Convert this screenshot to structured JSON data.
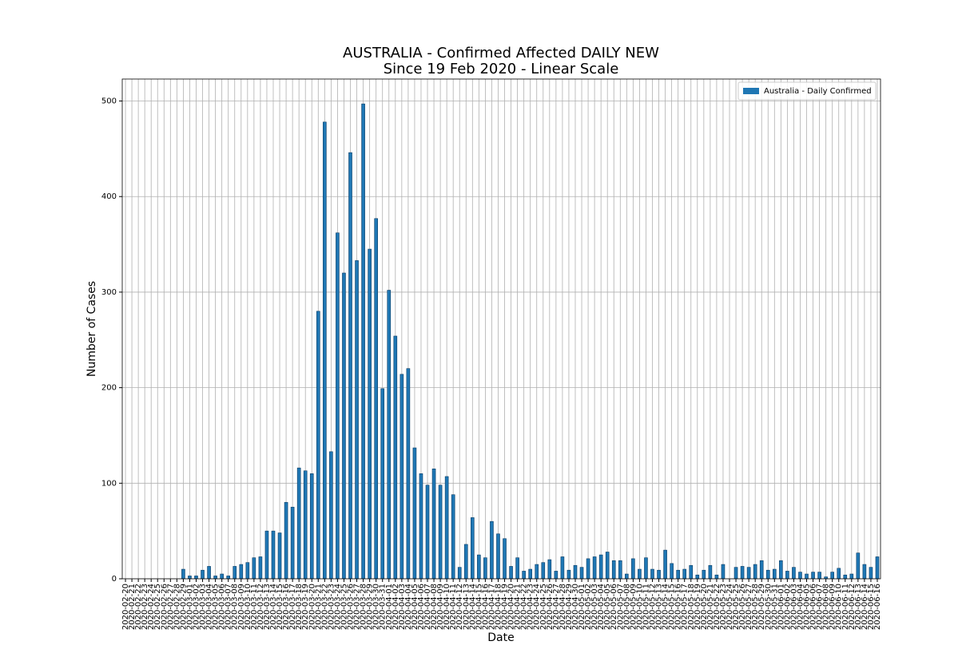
{
  "chart_data": {
    "type": "bar",
    "title": "AUSTRALIA - Confirmed Affected DAILY NEW",
    "subtitle": "Since 19 Feb 2020 - Linear Scale",
    "x_label": "Date",
    "y_label": "Number of Cases",
    "legend_position": "upper right",
    "grid": true,
    "categories": [
      "2020-02-20",
      "2020-02-21",
      "2020-02-22",
      "2020-02-23",
      "2020-02-24",
      "2020-02-25",
      "2020-02-26",
      "2020-02-27",
      "2020-02-28",
      "2020-02-29",
      "2020-03-01",
      "2020-03-02",
      "2020-03-03",
      "2020-03-04",
      "2020-03-05",
      "2020-03-06",
      "2020-03-07",
      "2020-03-08",
      "2020-03-09",
      "2020-03-10",
      "2020-03-11",
      "2020-03-12",
      "2020-03-13",
      "2020-03-14",
      "2020-03-15",
      "2020-03-16",
      "2020-03-17",
      "2020-03-18",
      "2020-03-19",
      "2020-03-20",
      "2020-03-21",
      "2020-03-22",
      "2020-03-23",
      "2020-03-24",
      "2020-03-25",
      "2020-03-26",
      "2020-03-27",
      "2020-03-28",
      "2020-03-29",
      "2020-03-30",
      "2020-03-31",
      "2020-04-01",
      "2020-04-02",
      "2020-04-03",
      "2020-04-04",
      "2020-04-05",
      "2020-04-06",
      "2020-04-07",
      "2020-04-08",
      "2020-04-09",
      "2020-04-10",
      "2020-04-11",
      "2020-04-12",
      "2020-04-13",
      "2020-04-14",
      "2020-04-15",
      "2020-04-16",
      "2020-04-17",
      "2020-04-18",
      "2020-04-19",
      "2020-04-20",
      "2020-04-21",
      "2020-04-22",
      "2020-04-23",
      "2020-04-24",
      "2020-04-25",
      "2020-04-26",
      "2020-04-27",
      "2020-04-28",
      "2020-04-29",
      "2020-04-30",
      "2020-05-01",
      "2020-05-02",
      "2020-05-03",
      "2020-05-04",
      "2020-05-05",
      "2020-05-06",
      "2020-05-07",
      "2020-05-08",
      "2020-05-09",
      "2020-05-10",
      "2020-05-11",
      "2020-05-12",
      "2020-05-13",
      "2020-05-14",
      "2020-05-15",
      "2020-05-16",
      "2020-05-17",
      "2020-05-18",
      "2020-05-19",
      "2020-05-20",
      "2020-05-21",
      "2020-05-22",
      "2020-05-23",
      "2020-05-24",
      "2020-05-25",
      "2020-05-26",
      "2020-05-27",
      "2020-05-28",
      "2020-05-29",
      "2020-05-30",
      "2020-05-31",
      "2020-06-01",
      "2020-06-02",
      "2020-06-03",
      "2020-06-04",
      "2020-06-05",
      "2020-06-06",
      "2020-06-07",
      "2020-06-08",
      "2020-06-09",
      "2020-06-10",
      "2020-06-11",
      "2020-06-12",
      "2020-06-13",
      "2020-06-14",
      "2020-06-15",
      "2020-06-16"
    ],
    "series": [
      {
        "name": "Australia - Daily Confirmed",
        "color": "#1f77b4",
        "values": [
          0,
          0,
          0,
          0,
          0,
          0,
          0,
          0,
          0,
          10,
          3,
          3,
          9,
          13,
          3,
          5,
          3,
          13,
          15,
          17,
          22,
          23,
          50,
          50,
          48,
          80,
          75,
          116,
          113,
          110,
          280,
          478,
          133,
          362,
          320,
          446,
          333,
          497,
          345,
          377,
          199,
          302,
          254,
          214,
          220,
          137,
          110,
          98,
          115,
          98,
          107,
          88,
          12,
          36,
          64,
          25,
          22,
          60,
          47,
          42,
          13,
          22,
          8,
          10,
          15,
          17,
          20,
          8,
          23,
          9,
          14,
          12,
          21,
          23,
          25,
          28,
          19,
          19,
          5,
          21,
          10,
          22,
          10,
          9,
          30,
          16,
          9,
          10,
          14,
          4,
          9,
          14,
          4,
          15,
          0,
          12,
          13,
          12,
          15,
          19,
          9,
          10,
          19,
          8,
          12,
          7,
          5,
          7,
          7,
          2,
          7,
          11,
          4,
          5,
          27,
          15,
          12,
          23
        ]
      }
    ],
    "ylim": [
      0,
      523
    ],
    "yticks": [
      0,
      100,
      200,
      300,
      400,
      500
    ]
  }
}
